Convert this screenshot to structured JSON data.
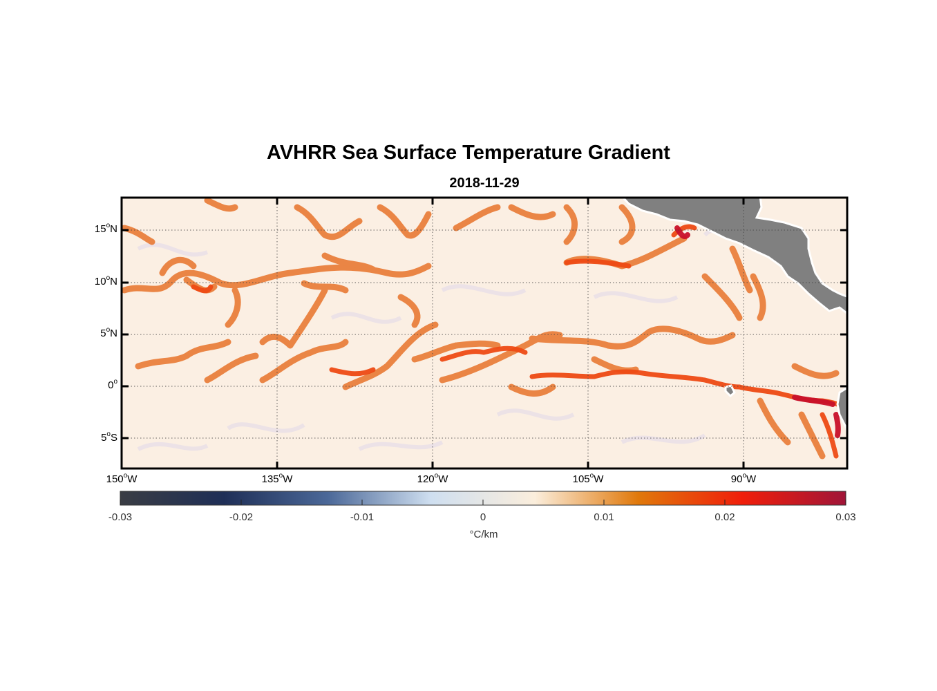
{
  "title": "AVHRR Sea Surface Temperature Gradient",
  "subtitle": "2018-11-29",
  "map": {
    "lat_ticks": [
      {
        "deg": "15",
        "hemi": "N",
        "value": 15
      },
      {
        "deg": "10",
        "hemi": "N",
        "value": 10
      },
      {
        "deg": "5",
        "hemi": "N",
        "value": 5
      },
      {
        "deg": "0",
        "hemi": "",
        "value": 0
      },
      {
        "deg": "5",
        "hemi": "S",
        "value": -5
      }
    ],
    "lon_ticks": [
      {
        "deg": "150",
        "hemi": "W",
        "value": -150
      },
      {
        "deg": "135",
        "hemi": "W",
        "value": -135
      },
      {
        "deg": "120",
        "hemi": "W",
        "value": -120
      },
      {
        "deg": "105",
        "hemi": "W",
        "value": -105
      },
      {
        "deg": "90",
        "hemi": "W",
        "value": -90
      }
    ],
    "lat_range": [
      -8,
      18
    ],
    "lon_range": [
      -150,
      -80
    ],
    "grid": "dotted",
    "land_color": "#808080",
    "background_color": "#fbefe3"
  },
  "colorbar": {
    "unit": "°C/km",
    "range": [
      -0.03,
      0.03
    ],
    "ticks": [
      "-0.03",
      "-0.02",
      "-0.01",
      "0",
      "0.01",
      "0.02",
      "0.03"
    ],
    "tick_values": [
      -0.03,
      -0.02,
      -0.01,
      0,
      0.01,
      0.02,
      0.03
    ],
    "colors": [
      "#3a3d44",
      "#1f2f57",
      "#4b6898",
      "#cfdff0",
      "#fbeedc",
      "#e0780a",
      "#f01e0a",
      "#a01538"
    ]
  }
}
